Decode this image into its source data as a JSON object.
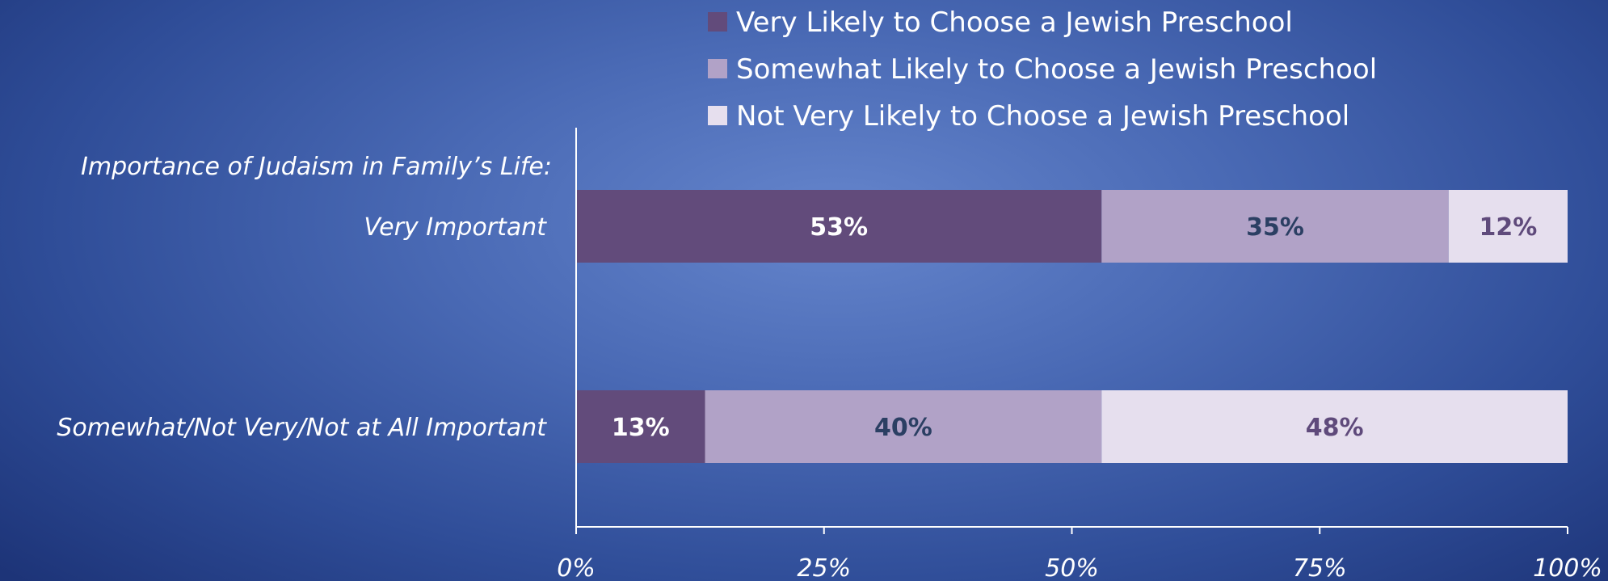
{
  "chart_data": {
    "type": "bar",
    "orientation": "horizontal",
    "stacked": true,
    "title": "",
    "group_label": "Importance of Judaism in Family’s Life:",
    "categories": [
      "Very Important",
      "Somewhat/Not Very/Not at All Important"
    ],
    "series": [
      {
        "name": "Very Likely to Choose a Jewish Preschool",
        "values": [
          53,
          13
        ],
        "labels": [
          "53%",
          "13%"
        ],
        "color": "#624b7b",
        "label_color": "#ffffff"
      },
      {
        "name": "Somewhat Likely to Choose a Jewish Preschool",
        "values": [
          35,
          40
        ],
        "labels": [
          "35%",
          "40%"
        ],
        "color": "#b1a2c7",
        "label_color": "#2b3f63"
      },
      {
        "name": "Not Very Likely to Choose a Jewish Preschool",
        "values": [
          12,
          48
        ],
        "labels": [
          "12%",
          "48%"
        ],
        "color": "#e6dfee",
        "label_color": "#5f4a7b"
      }
    ],
    "xlim": [
      0,
      100
    ],
    "ticks": [
      "0%",
      "25%",
      "50%",
      "75%",
      "100%"
    ],
    "legend_position": "top",
    "grid": false
  }
}
